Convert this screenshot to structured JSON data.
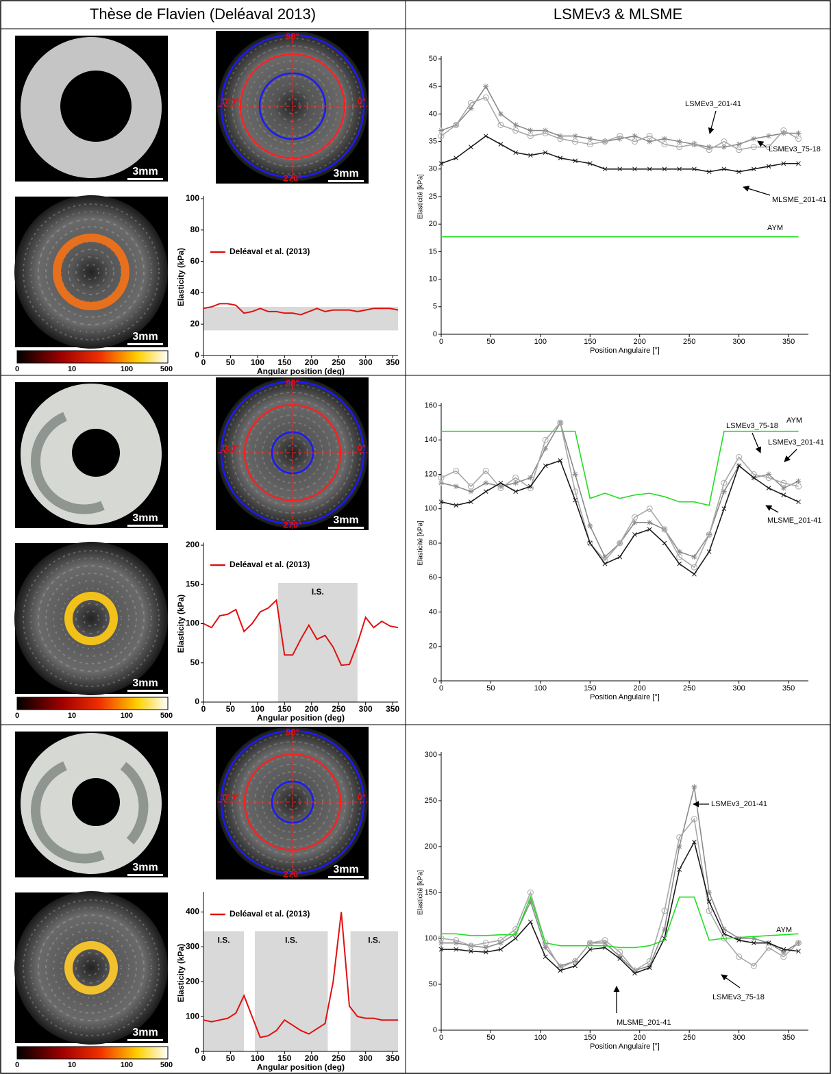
{
  "table": {
    "headers": [
      "Thèse de Flavien (Deléaval 2013)",
      "LSMEv3 & MLSME"
    ],
    "image_labels": {
      "scale": "3mm",
      "angles": [
        "90°",
        "180°",
        "0°",
        "270°"
      ],
      "colorbar": [
        "0",
        "10",
        "100",
        "500"
      ]
    },
    "rows": [
      {
        "left_chart": {
          "type": "line",
          "xlabel": "Angular position (deg)",
          "ylabel": "Elasticity (kPa)",
          "xlim": [
            0,
            360
          ],
          "ylim": [
            0,
            100
          ],
          "xticks": [
            0,
            50,
            100,
            150,
            200,
            250,
            300,
            350
          ],
          "yticks": [
            0,
            20,
            40,
            60,
            80,
            100
          ],
          "legend": true,
          "band_color": "#d9d9d9",
          "shaded_regions": [
            {
              "x": [
                0,
                360
              ],
              "y": [
                16,
                31
              ]
            }
          ],
          "x": [
            0,
            15,
            30,
            45,
            60,
            75,
            90,
            105,
            120,
            135,
            150,
            165,
            180,
            195,
            210,
            225,
            240,
            255,
            270,
            285,
            300,
            315,
            330,
            345,
            360
          ],
          "series": [
            {
              "name": "Deléaval et al. (2013)",
              "color": "#e01010",
              "values": [
                30,
                31,
                33,
                33,
                32,
                27,
                28,
                30,
                28,
                28,
                27,
                27,
                26,
                28,
                30,
                28,
                29,
                29,
                29,
                28,
                29,
                30,
                30,
                30,
                29
              ]
            }
          ]
        },
        "right_chart": {
          "type": "line",
          "xlabel": "Position Angulaire [°]",
          "ylabel": "Elasticité [kPa]",
          "xlim": [
            0,
            370
          ],
          "ylim": [
            0,
            50
          ],
          "xticks": [
            0,
            50,
            100,
            150,
            200,
            250,
            300,
            350
          ],
          "yticks": [
            0,
            5,
            10,
            15,
            20,
            25,
            30,
            35,
            40,
            45,
            50
          ],
          "x": [
            0,
            15,
            30,
            45,
            60,
            75,
            90,
            105,
            120,
            135,
            150,
            165,
            180,
            195,
            210,
            225,
            240,
            255,
            270,
            285,
            300,
            315,
            330,
            345,
            360
          ],
          "series": [
            {
              "name": "LSMEv3_201-41",
              "color": "#8a8a8a",
              "marker": "star",
              "values": [
                37,
                38,
                41,
                45,
                40,
                38,
                37,
                37,
                36,
                36,
                35.5,
                35,
                35.5,
                36,
                35,
                35.5,
                35,
                34.5,
                34,
                34,
                34.5,
                35.5,
                36,
                36.5,
                36.5
              ]
            },
            {
              "name": "LSMEv3_75-18",
              "color": "#a8a8a8",
              "marker": "circle",
              "values": [
                36,
                38,
                42,
                43,
                38,
                37,
                36,
                36.5,
                35.5,
                35,
                34.5,
                35,
                36,
                35,
                36,
                34.5,
                34,
                34.5,
                33.5,
                35,
                33.5,
                34,
                34,
                37,
                35.5
              ]
            },
            {
              "name": "MLSME_201-41",
              "color": "#1a1a1a",
              "marker": "x",
              "values": [
                31,
                32,
                34,
                36,
                34.5,
                33,
                32.5,
                33,
                32,
                31.5,
                31,
                30,
                30,
                30,
                30,
                30,
                30,
                30,
                29.5,
                30,
                29.5,
                30,
                30.5,
                31,
                31
              ]
            },
            {
              "name": "AYM",
              "color": "#22dd22",
              "values": [
                17.7,
                17.7,
                17.7,
                17.7,
                17.7,
                17.7,
                17.7,
                17.7,
                17.7,
                17.7,
                17.7,
                17.7,
                17.7,
                17.7,
                17.7,
                17.7,
                17.7,
                17.7,
                17.7,
                17.7,
                17.7,
                17.7,
                17.7,
                17.7,
                17.7
              ]
            }
          ]
        }
      },
      {
        "left_chart": {
          "type": "line",
          "xlabel": "Angular position (deg)",
          "ylabel": "Elasticity (kPa)",
          "xlim": [
            0,
            360
          ],
          "ylim": [
            0,
            200
          ],
          "xticks": [
            0,
            50,
            100,
            150,
            200,
            250,
            300,
            350
          ],
          "yticks": [
            0,
            50,
            100,
            150,
            200
          ],
          "legend": true,
          "band_color": "#d9d9d9",
          "shaded_regions": [
            {
              "x": [
                138,
                285
              ],
              "y": [
                0,
                152
              ],
              "label": "I.S."
            }
          ],
          "x": [
            0,
            15,
            30,
            45,
            60,
            75,
            90,
            105,
            120,
            135,
            150,
            165,
            180,
            195,
            210,
            225,
            240,
            255,
            270,
            285,
            300,
            315,
            330,
            345,
            360
          ],
          "series": [
            {
              "name": "Deléaval et al. (2013)",
              "color": "#e01010",
              "values": [
                100,
                95,
                110,
                112,
                118,
                90,
                100,
                115,
                120,
                130,
                60,
                60,
                80,
                98,
                80,
                85,
                70,
                47,
                48,
                75,
                108,
                95,
                103,
                97,
                95
              ]
            }
          ]
        },
        "right_chart": {
          "type": "line",
          "xlabel": "Position Angulaire [°]",
          "ylabel": "Elasticité [kPa]",
          "xlim": [
            0,
            370
          ],
          "ylim": [
            0,
            160
          ],
          "xticks": [
            0,
            50,
            100,
            150,
            200,
            250,
            300,
            350
          ],
          "yticks": [
            0,
            20,
            40,
            60,
            80,
            100,
            120,
            140,
            160
          ],
          "x": [
            0,
            15,
            30,
            45,
            60,
            75,
            90,
            105,
            120,
            135,
            150,
            165,
            180,
            195,
            210,
            225,
            240,
            255,
            270,
            285,
            300,
            315,
            330,
            345,
            360
          ],
          "series": [
            {
              "name": "LSMEv3_201-41",
              "color": "#8a8a8a",
              "marker": "star",
              "values": [
                115,
                113,
                110,
                115,
                113,
                115,
                118,
                135,
                150,
                120,
                90,
                72,
                80,
                92,
                92,
                88,
                75,
                72,
                85,
                110,
                125,
                118,
                120,
                112,
                116
              ]
            },
            {
              "name": "LSMEv3_75-18",
              "color": "#a8a8a8",
              "marker": "circle",
              "values": [
                118,
                122,
                113,
                122,
                112,
                118,
                112,
                140,
                150,
                110,
                80,
                70,
                80,
                95,
                100,
                88,
                72,
                66,
                85,
                115,
                130,
                120,
                118,
                115,
                113
              ]
            },
            {
              "name": "MLSME_201-41",
              "color": "#1a1a1a",
              "marker": "x",
              "values": [
                104,
                102,
                104,
                110,
                115,
                110,
                113,
                125,
                128,
                105,
                80,
                68,
                72,
                85,
                88,
                80,
                68,
                62,
                75,
                100,
                125,
                118,
                112,
                108,
                104
              ]
            },
            {
              "name": "AYM",
              "color": "#22dd22",
              "values": [
                145,
                145,
                145,
                145,
                145,
                145,
                145,
                145,
                145,
                145,
                106,
                109,
                106,
                108,
                109,
                107,
                104,
                104,
                102,
                145,
                145,
                145,
                145,
                145,
                145
              ]
            }
          ]
        }
      },
      {
        "left_chart": {
          "type": "line",
          "xlabel": "Angular position (deg)",
          "ylabel": "Elasticity (kPa)",
          "xlim": [
            0,
            360
          ],
          "ylim": [
            0,
            450
          ],
          "xticks": [
            0,
            50,
            100,
            150,
            200,
            250,
            300,
            350
          ],
          "yticks": [
            0,
            100,
            200,
            300,
            400
          ],
          "legend": true,
          "band_color": "#d9d9d9",
          "shaded_regions": [
            {
              "x": [
                0,
                75
              ],
              "y": [
                0,
                345
              ],
              "label": "I.S."
            },
            {
              "x": [
                95,
                230
              ],
              "y": [
                0,
                345
              ],
              "label": "I.S."
            },
            {
              "x": [
                272,
                360
              ],
              "y": [
                0,
                345
              ],
              "label": "I.S."
            }
          ],
          "x": [
            0,
            15,
            30,
            45,
            60,
            75,
            90,
            105,
            120,
            135,
            150,
            165,
            180,
            195,
            210,
            225,
            240,
            255,
            270,
            285,
            300,
            315,
            330,
            345,
            360
          ],
          "series": [
            {
              "name": "Deléaval et al. (2013)",
              "color": "#e01010",
              "values": [
                90,
                85,
                90,
                95,
                110,
                160,
                100,
                40,
                45,
                60,
                90,
                75,
                60,
                50,
                65,
                80,
                200,
                400,
                130,
                100,
                95,
                95,
                90,
                90,
                90
              ]
            }
          ]
        },
        "right_chart": {
          "type": "line",
          "xlabel": "Position Angulaire [°]",
          "ylabel": "Elasticité [kPa]",
          "xlim": [
            0,
            370
          ],
          "ylim": [
            0,
            300
          ],
          "xticks": [
            0,
            50,
            100,
            150,
            200,
            250,
            300,
            350
          ],
          "yticks": [
            0,
            50,
            100,
            150,
            200,
            250,
            300
          ],
          "x": [
            0,
            15,
            30,
            45,
            60,
            75,
            90,
            105,
            120,
            135,
            150,
            165,
            180,
            195,
            210,
            225,
            240,
            255,
            270,
            285,
            300,
            315,
            330,
            345,
            360
          ],
          "series": [
            {
              "name": "LSMEv3_201-41",
              "color": "#8a8a8a",
              "marker": "star",
              "values": [
                95,
                95,
                92,
                90,
                95,
                105,
                140,
                90,
                70,
                75,
                95,
                95,
                80,
                65,
                70,
                110,
                200,
                265,
                150,
                110,
                100,
                100,
                95,
                85,
                95
              ]
            },
            {
              "name": "LSMEv3_75-18",
              "color": "#a8a8a8",
              "marker": "circle",
              "values": [
                100,
                98,
                92,
                95,
                98,
                110,
                150,
                95,
                68,
                75,
                95,
                98,
                85,
                65,
                75,
                130,
                210,
                230,
                130,
                100,
                80,
                70,
                90,
                80,
                95
              ]
            },
            {
              "name": "MLSME_201-41",
              "color": "#1a1a1a",
              "marker": "x",
              "values": [
                88,
                88,
                86,
                85,
                88,
                100,
                118,
                80,
                65,
                70,
                88,
                90,
                78,
                62,
                68,
                100,
                175,
                205,
                140,
                105,
                98,
                95,
                95,
                88,
                86
              ]
            },
            {
              "name": "AYM",
              "color": "#22dd22",
              "values": [
                105,
                105,
                103,
                103,
                104,
                104,
                145,
                95,
                92,
                92,
                92,
                92,
                90,
                90,
                92,
                98,
                145,
                145,
                98,
                100,
                101,
                102,
                103,
                104,
                105
              ]
            }
          ]
        }
      }
    ]
  }
}
